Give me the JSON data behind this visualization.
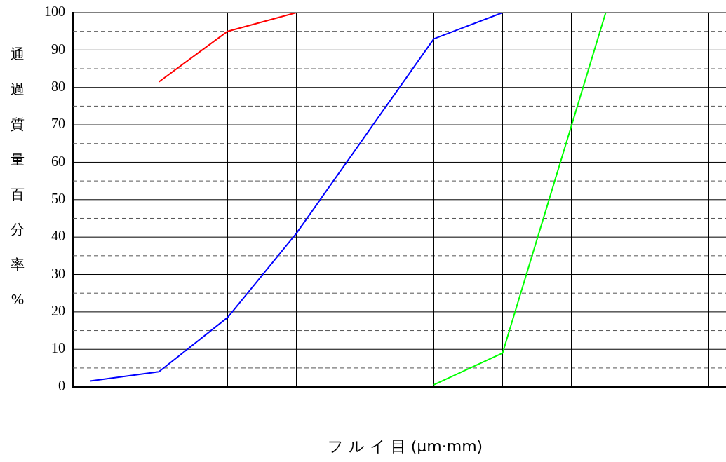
{
  "chart_data": {
    "type": "line",
    "xlabel": "フ ル イ 目 (μm·mm)",
    "ylabel": "通過質量百分率%",
    "categories": [
      null,
      null,
      null,
      null,
      null,
      null,
      null,
      null,
      null,
      null,
      null,
      null,
      null,
      null,
      null,
      null,
      null,
      null,
      null
    ],
    "series": [
      {
        "color": "#ff0000",
        "values": [
          null,
          null,
          81.5,
          null,
          95,
          null,
          100,
          null,
          null,
          null,
          null,
          null,
          null,
          null,
          null,
          null,
          null,
          null,
          null
        ]
      },
      {
        "color": "#0000ff",
        "values": [
          1.5,
          null,
          4,
          null,
          18.5,
          null,
          41,
          null,
          null,
          null,
          93,
          null,
          100,
          null,
          null,
          null,
          null,
          null,
          null
        ]
      },
      {
        "color": "#00ff00",
        "values": [
          null,
          null,
          null,
          null,
          null,
          null,
          null,
          null,
          null,
          null,
          0.5,
          null,
          9,
          null,
          null,
          100,
          null,
          null,
          null
        ]
      }
    ],
    "ylim": [
      0,
      100
    ],
    "yticks": [
      0,
      {
        "value": 5,
        "label": null
      },
      10,
      {
        "value": 15,
        "label": null
      },
      20,
      {
        "value": 25,
        "label": null
      },
      30,
      {
        "value": 35,
        "label": null
      },
      40,
      {
        "value": 45,
        "label": null
      },
      50,
      {
        "value": 55,
        "label": null
      },
      60,
      {
        "value": 65,
        "label": null
      },
      70,
      {
        "value": 75,
        "label": null
      },
      80,
      {
        "value": 85,
        "label": null
      },
      90,
      {
        "value": 95,
        "label": null
      },
      100
    ],
    "grid": true,
    "marker": "none",
    "line_style": "solid",
    "legend": false
  }
}
